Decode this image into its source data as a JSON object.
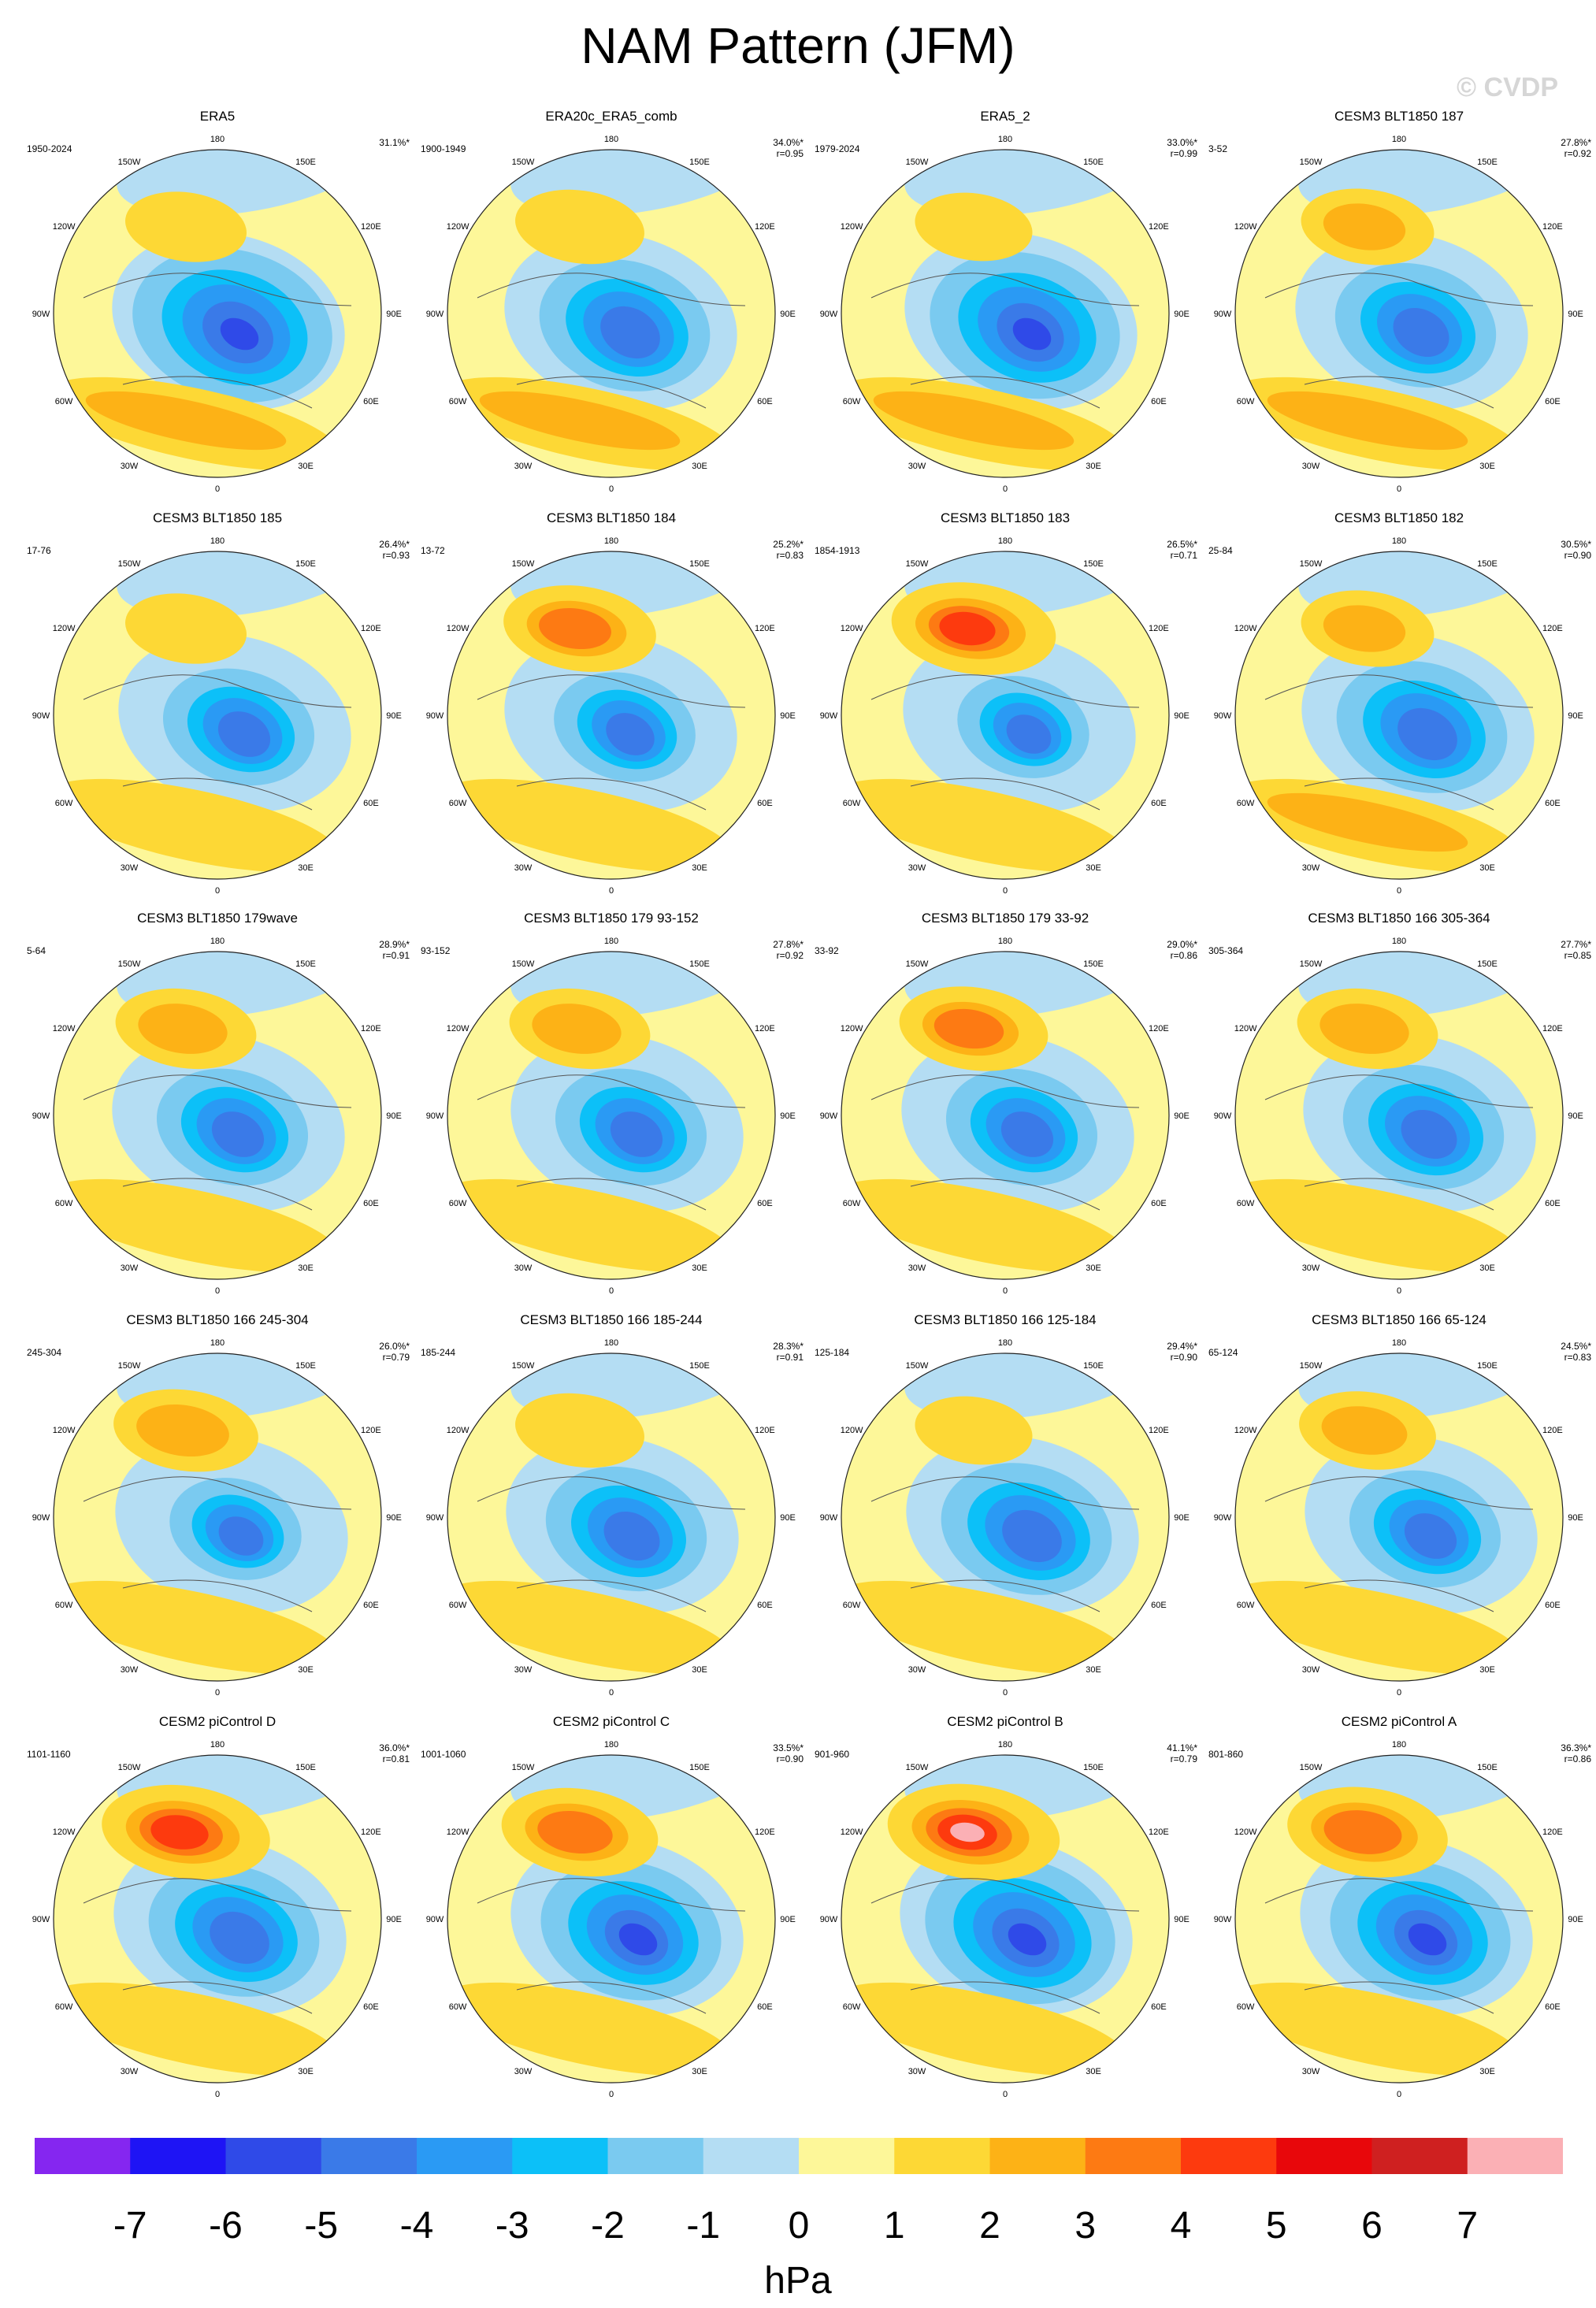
{
  "title": "NAM Pattern (JFM)",
  "watermark": "© CVDP",
  "lon_labels": {
    "top": "180",
    "bottom": "0",
    "w150": "150W",
    "e150": "150E",
    "w120": "120W",
    "e120": "120E",
    "w90": "90W",
    "e90": "90E",
    "w60": "60W",
    "e60": "60E",
    "w30": "30W",
    "e30": "30E"
  },
  "colorbar": {
    "ticks": [
      "-7",
      "-6",
      "-5",
      "-4",
      "-3",
      "-2",
      "-1",
      "0",
      "1",
      "2",
      "3",
      "4",
      "5",
      "6",
      "7"
    ],
    "unit": "hPa",
    "colors": [
      "#8526f0",
      "#1e14f5",
      "#2f4ae8",
      "#3a7ae8",
      "#2a9af4",
      "#0cc0f8",
      "#7acaf0",
      "#b4ddf3",
      "#fdf799",
      "#fdd835",
      "#fdb216",
      "#fd7a13",
      "#fd3a0e",
      "#e8070b",
      "#cf2020",
      "#fbb0b5"
    ]
  },
  "panels": [
    {
      "title": "ERA5",
      "years": "1950-2024",
      "pct": "31.1%*",
      "r": "",
      "pat": {
        "pac": 0.35,
        "atl": 0.55,
        "pole": 0.95,
        "shape": 0.2
      }
    },
    {
      "title": "ERA20c_ERA5_comb",
      "years": "1900-1949",
      "pct": "34.0%*",
      "r": "r=0.95",
      "pat": {
        "pac": 0.45,
        "atl": 0.55,
        "pole": 0.8,
        "shape": 0.1
      }
    },
    {
      "title": "ERA5_2",
      "years": "1979-2024",
      "pct": "33.0%*",
      "r": "r=0.99",
      "pat": {
        "pac": 0.3,
        "atl": 0.55,
        "pole": 0.9,
        "shape": 0.5
      }
    },
    {
      "title": "CESM3 BLT1850 187",
      "years": "3-52",
      "pct": "27.8%*",
      "r": "r=0.92",
      "pat": {
        "pac": 0.5,
        "atl": 0.45,
        "pole": 0.75,
        "shape": 0.3
      }
    },
    {
      "title": "CESM3 BLT1850 185",
      "years": "17-76",
      "pct": "26.4%*",
      "r": "r=0.93",
      "pat": {
        "pac": 0.35,
        "atl": 0.35,
        "pole": 0.7,
        "shape": 0.6
      }
    },
    {
      "title": "CESM3 BLT1850 184",
      "years": "13-72",
      "pct": "25.2%*",
      "r": "r=0.83",
      "pat": {
        "pac": 0.75,
        "atl": 0.35,
        "pole": 0.65,
        "shape": 0.1
      }
    },
    {
      "title": "CESM3 BLT1850 183",
      "years": "1854-1913",
      "pct": "26.5%*",
      "r": "r=0.71",
      "pat": {
        "pac": 0.9,
        "atl": 0.3,
        "pole": 0.6,
        "shape": 0.4
      }
    },
    {
      "title": "CESM3 BLT1850 182",
      "years": "25-84",
      "pct": "30.5%*",
      "r": "r=0.90",
      "pat": {
        "pac": 0.5,
        "atl": 0.45,
        "pole": 0.8,
        "shape": 0.7
      }
    },
    {
      "title": "CESM3 BLT1850 179wave",
      "years": "5-64",
      "pct": "28.9%*",
      "r": "r=0.91",
      "pat": {
        "pac": 0.6,
        "atl": 0.35,
        "pole": 0.7,
        "shape": 0.2
      }
    },
    {
      "title": "CESM3 BLT1850 179 93-152",
      "years": "93-152",
      "pct": "27.8%*",
      "r": "r=0.92",
      "pat": {
        "pac": 0.6,
        "atl": 0.4,
        "pole": 0.7,
        "shape": 0.5
      }
    },
    {
      "title": "CESM3 BLT1850 179 33-92",
      "years": "33-92",
      "pct": "29.0%*",
      "r": "r=0.86",
      "pat": {
        "pac": 0.7,
        "atl": 0.4,
        "pole": 0.7,
        "shape": 0.3
      }
    },
    {
      "title": "CESM3 BLT1850 166 305-364",
      "years": "305-364",
      "pct": "27.7%*",
      "r": "r=0.85",
      "pat": {
        "pac": 0.6,
        "atl": 0.4,
        "pole": 0.75,
        "shape": 0.8
      }
    },
    {
      "title": "CESM3 BLT1850 166 245-304",
      "years": "245-304",
      "pct": "26.0%*",
      "r": "r=0.79",
      "pat": {
        "pac": 0.65,
        "atl": 0.3,
        "pole": 0.6,
        "shape": 0.4
      }
    },
    {
      "title": "CESM3 BLT1850 166 185-244",
      "years": "185-244",
      "pct": "28.3%*",
      "r": "r=0.91",
      "pat": {
        "pac": 0.45,
        "atl": 0.35,
        "pole": 0.75,
        "shape": 0.2
      }
    },
    {
      "title": "CESM3 BLT1850 166 125-184",
      "years": "125-184",
      "pct": "29.4%*",
      "r": "r=0.90",
      "pat": {
        "pac": 0.3,
        "atl": 0.4,
        "pole": 0.8,
        "shape": 0.6
      }
    },
    {
      "title": "CESM3 BLT1850 166 65-124",
      "years": "65-124",
      "pct": "24.5%*",
      "r": "r=0.83",
      "pat": {
        "pac": 0.55,
        "atl": 0.35,
        "pole": 0.7,
        "shape": 0.9
      }
    },
    {
      "title": "CESM2 piControl D",
      "years": "1101-1160",
      "pct": "36.0%*",
      "r": "r=0.81",
      "pat": {
        "pac": 0.95,
        "atl": 0.35,
        "pole": 0.8,
        "shape": 0.3
      }
    },
    {
      "title": "CESM2 piControl C",
      "years": "1001-1060",
      "pct": "33.5%*",
      "r": "r=0.90",
      "pat": {
        "pac": 0.8,
        "atl": 0.35,
        "pole": 0.85,
        "shape": 0.5
      }
    },
    {
      "title": "CESM2 piControl B",
      "years": "901-960",
      "pct": "41.1%*",
      "r": "r=0.79",
      "pat": {
        "pac": 1.0,
        "atl": 0.4,
        "pole": 0.9,
        "shape": 0.2
      }
    },
    {
      "title": "CESM2 piControl A",
      "years": "801-860",
      "pct": "36.3%*",
      "r": "r=0.86",
      "pat": {
        "pac": 0.85,
        "atl": 0.35,
        "pole": 0.85,
        "shape": 0.6
      }
    }
  ]
}
